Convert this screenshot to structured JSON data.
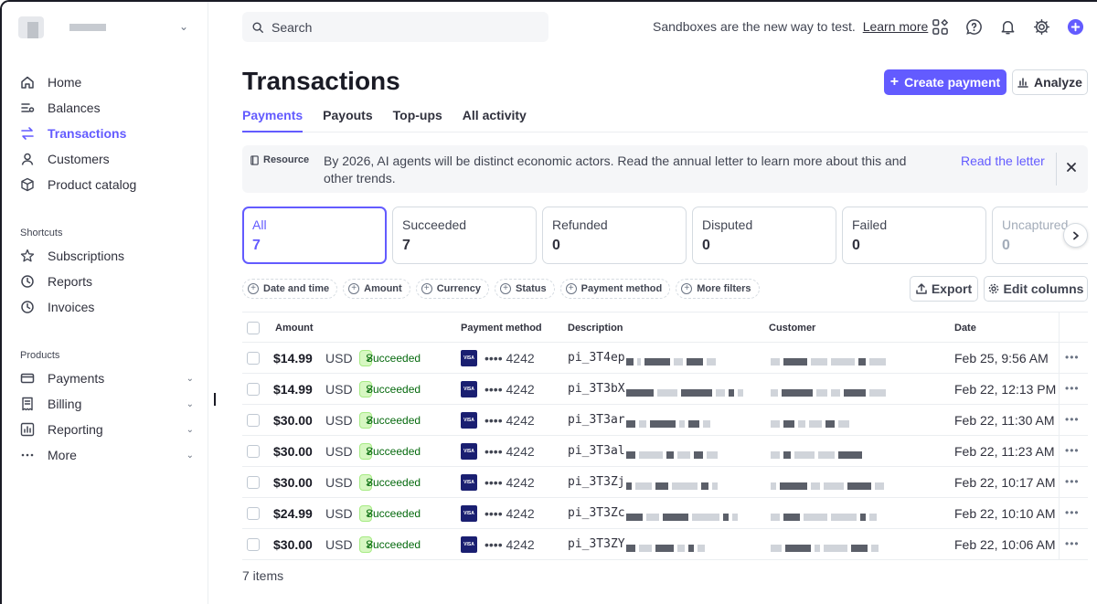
{
  "sidebar": {
    "main_items": [
      {
        "label": "Home",
        "icon": "home-icon"
      },
      {
        "label": "Balances",
        "icon": "balances-icon"
      },
      {
        "label": "Transactions",
        "icon": "transactions-icon",
        "active": true
      },
      {
        "label": "Customers",
        "icon": "customers-icon"
      },
      {
        "label": "Product catalog",
        "icon": "product-catalog-icon"
      }
    ],
    "shortcuts_label": "Shortcuts",
    "shortcuts": [
      {
        "label": "Subscriptions",
        "icon": "subscriptions-icon"
      },
      {
        "label": "Reports",
        "icon": "reports-icon"
      },
      {
        "label": "Invoices",
        "icon": "invoices-icon"
      }
    ],
    "products_label": "Products",
    "products": [
      {
        "label": "Payments",
        "icon": "payments-icon"
      },
      {
        "label": "Billing",
        "icon": "billing-icon"
      },
      {
        "label": "Reporting",
        "icon": "reporting-icon"
      },
      {
        "label": "More",
        "icon": "more-icon"
      }
    ]
  },
  "topbar": {
    "search_placeholder": "Search",
    "sandbox_text": "Sandboxes are the new way to test.",
    "learn_more": "Learn more"
  },
  "page": {
    "title": "Transactions",
    "create_button": "Create payment",
    "analyze_button": "Analyze"
  },
  "tabs": [
    "Payments",
    "Payouts",
    "Top-ups",
    "All activity"
  ],
  "banner": {
    "tag": "Resource",
    "message": "By 2026, AI agents will be distinct economic actors. Read the annual letter to learn more about this and other trends.",
    "link": "Read the letter"
  },
  "status_cards": [
    {
      "label": "All",
      "count": "7"
    },
    {
      "label": "Succeeded",
      "count": "7"
    },
    {
      "label": "Refunded",
      "count": "0"
    },
    {
      "label": "Disputed",
      "count": "0"
    },
    {
      "label": "Failed",
      "count": "0"
    },
    {
      "label": "Uncaptured",
      "count": "0"
    }
  ],
  "filters": [
    "Date and time",
    "Amount",
    "Currency",
    "Status",
    "Payment method",
    "More filters"
  ],
  "actions": {
    "export": "Export",
    "edit_columns": "Edit columns"
  },
  "table": {
    "headers": {
      "amount": "Amount",
      "payment_method": "Payment method",
      "description": "Description",
      "customer": "Customer",
      "date": "Date"
    },
    "rows": [
      {
        "amount": "$14.99",
        "currency": "USD",
        "status": "Succeeded",
        "card": "•••• 4242",
        "desc": "pi_3T4ep",
        "date": "Feb 25, 9:56 AM"
      },
      {
        "amount": "$14.99",
        "currency": "USD",
        "status": "Succeeded",
        "card": "•••• 4242",
        "desc": "pi_3T3bX",
        "date": "Feb 22, 12:13 PM"
      },
      {
        "amount": "$30.00",
        "currency": "USD",
        "status": "Succeeded",
        "card": "•••• 4242",
        "desc": "pi_3T3ar",
        "date": "Feb 22, 11:30 AM"
      },
      {
        "amount": "$30.00",
        "currency": "USD",
        "status": "Succeeded",
        "card": "•••• 4242",
        "desc": "pi_3T3al",
        "date": "Feb 22, 11:23 AM"
      },
      {
        "amount": "$30.00",
        "currency": "USD",
        "status": "Succeeded",
        "card": "•••• 4242",
        "desc": "pi_3T3Zj",
        "date": "Feb 22, 10:17 AM"
      },
      {
        "amount": "$24.99",
        "currency": "USD",
        "status": "Succeeded",
        "card": "•••• 4242",
        "desc": "pi_3T3Zc",
        "date": "Feb 22, 10:10 AM"
      },
      {
        "amount": "$30.00",
        "currency": "USD",
        "status": "Succeeded",
        "card": "•••• 4242",
        "desc": "pi_3T3ZY",
        "date": "Feb 22, 10:06 AM"
      }
    ],
    "card_brand": "VISA",
    "more_glyph": "•••"
  },
  "footer": {
    "items_count": "7 items"
  },
  "colors": {
    "accent": "#635bff",
    "success_bg": "#d7f7c2",
    "success_text": "#05690d",
    "visa": "#1a1f71"
  }
}
